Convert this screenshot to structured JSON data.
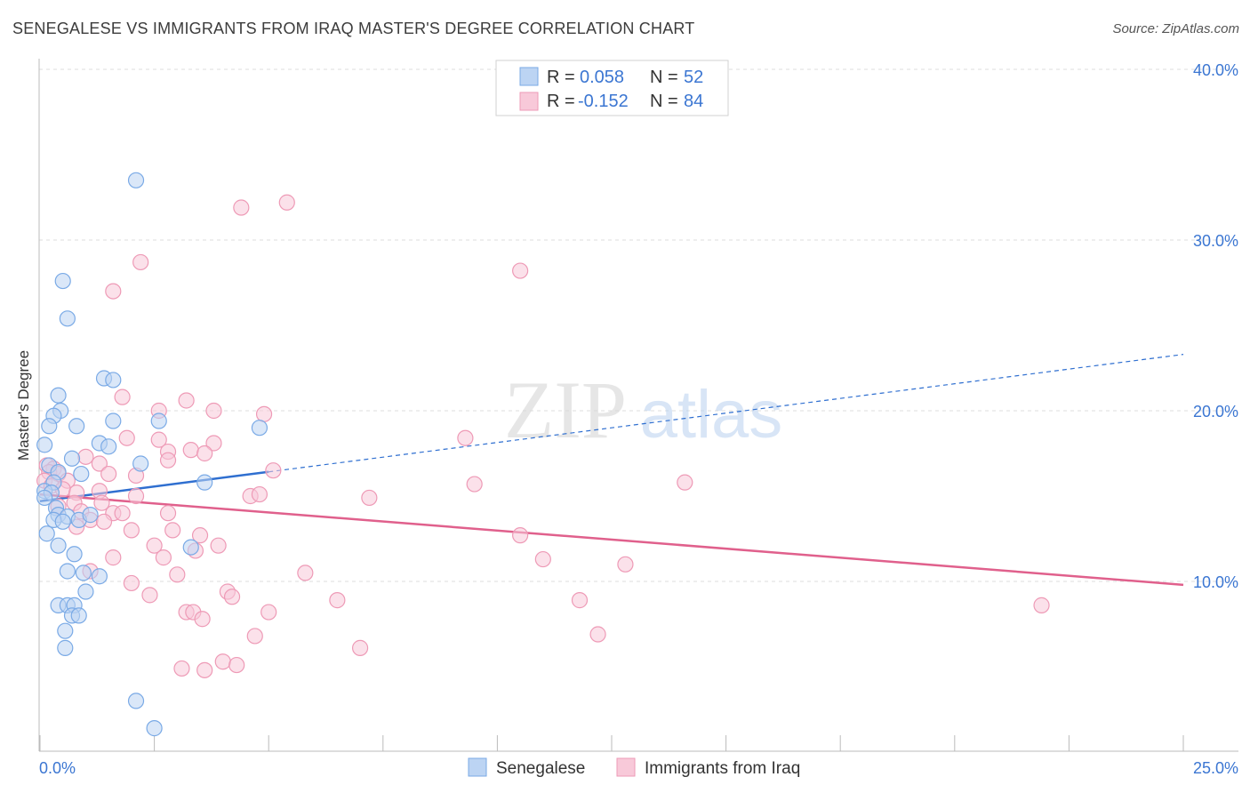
{
  "title": "SENEGALESE VS IMMIGRANTS FROM IRAQ MASTER'S DEGREE CORRELATION CHART",
  "source": "Source: ZipAtlas.com",
  "watermark": {
    "zip": "ZIP",
    "atlas": "atlas"
  },
  "legend": {
    "rows": [
      {
        "r_label": "R =",
        "r_value": "0.058",
        "n_label": "N =",
        "n_value": "52"
      },
      {
        "r_label": "R =",
        "r_value": "-0.152",
        "n_label": "N =",
        "n_value": "84"
      }
    ]
  },
  "chart_data": {
    "type": "scatter",
    "title": "SENEGALESE VS IMMIGRANTS FROM IRAQ MASTER'S DEGREE CORRELATION CHART",
    "xlabel": "",
    "ylabel": "Master's Degree",
    "xlim": [
      0,
      25
    ],
    "ylim": [
      0,
      41
    ],
    "x_tick_labels": [
      {
        "value": 0,
        "label": "0.0%"
      },
      {
        "value": 25,
        "label": "25.0%"
      }
    ],
    "y_tick_labels": [
      {
        "value": 10,
        "label": "10.0%"
      },
      {
        "value": 20,
        "label": "20.0%"
      },
      {
        "value": 30,
        "label": "30.0%"
      },
      {
        "value": 40,
        "label": "40.0%"
      }
    ],
    "grid": true,
    "legend_position": "top-center",
    "series": [
      {
        "name": "Senegalese",
        "color": "#7aaae6",
        "fill": "#bcd4f3",
        "line_color": "#2f6fd0",
        "regression": {
          "x_start": 0,
          "y_start": 14.7,
          "x_end": 25,
          "y_end": 23.3,
          "solid_until_x": 5
        },
        "points": [
          [
            2.1,
            33.5
          ],
          [
            0.5,
            27.6
          ],
          [
            0.6,
            25.4
          ],
          [
            1.4,
            21.9
          ],
          [
            1.6,
            21.8
          ],
          [
            0.4,
            20.9
          ],
          [
            0.45,
            20.0
          ],
          [
            0.3,
            19.7
          ],
          [
            0.2,
            19.1
          ],
          [
            0.8,
            19.1
          ],
          [
            1.6,
            19.4
          ],
          [
            2.6,
            19.4
          ],
          [
            4.8,
            19.0
          ],
          [
            0.1,
            18.0
          ],
          [
            1.3,
            18.1
          ],
          [
            1.5,
            17.9
          ],
          [
            0.7,
            17.2
          ],
          [
            2.2,
            16.9
          ],
          [
            0.2,
            16.8
          ],
          [
            0.4,
            16.4
          ],
          [
            0.9,
            16.3
          ],
          [
            0.3,
            15.8
          ],
          [
            3.6,
            15.8
          ],
          [
            0.1,
            15.3
          ],
          [
            0.25,
            15.2
          ],
          [
            0.1,
            14.9
          ],
          [
            0.35,
            14.3
          ],
          [
            0.4,
            13.9
          ],
          [
            0.6,
            13.8
          ],
          [
            0.3,
            13.6
          ],
          [
            0.5,
            13.5
          ],
          [
            0.85,
            13.6
          ],
          [
            1.1,
            13.9
          ],
          [
            0.15,
            12.8
          ],
          [
            0.4,
            12.1
          ],
          [
            3.3,
            12.0
          ],
          [
            0.75,
            11.6
          ],
          [
            0.6,
            10.6
          ],
          [
            0.95,
            10.5
          ],
          [
            1.3,
            10.3
          ],
          [
            1.0,
            9.4
          ],
          [
            0.4,
            8.6
          ],
          [
            0.6,
            8.6
          ],
          [
            0.75,
            8.6
          ],
          [
            0.7,
            8.0
          ],
          [
            0.85,
            8.0
          ],
          [
            0.55,
            7.1
          ],
          [
            0.55,
            6.1
          ],
          [
            2.1,
            3.0
          ],
          [
            2.5,
            1.4
          ]
        ]
      },
      {
        "name": "Immigrants from Iraq",
        "color": "#ee9ab6",
        "fill": "#f8c9d9",
        "line_color": "#e0608c",
        "regression": {
          "x_start": 0,
          "y_start": 15.1,
          "x_end": 25,
          "y_end": 9.8,
          "solid_until_x": 25
        },
        "points": [
          [
            5.4,
            32.2
          ],
          [
            4.4,
            31.9
          ],
          [
            10.5,
            28.2
          ],
          [
            2.2,
            28.7
          ],
          [
            1.6,
            27.0
          ],
          [
            1.8,
            20.8
          ],
          [
            3.2,
            20.6
          ],
          [
            2.6,
            20.0
          ],
          [
            3.8,
            20.0
          ],
          [
            4.9,
            19.8
          ],
          [
            9.3,
            18.4
          ],
          [
            1.9,
            18.4
          ],
          [
            2.6,
            18.3
          ],
          [
            3.8,
            18.1
          ],
          [
            3.3,
            17.7
          ],
          [
            2.8,
            17.6
          ],
          [
            3.6,
            17.5
          ],
          [
            1.0,
            17.3
          ],
          [
            1.3,
            16.9
          ],
          [
            2.8,
            17.1
          ],
          [
            0.15,
            16.8
          ],
          [
            0.3,
            16.6
          ],
          [
            0.2,
            16.4
          ],
          [
            0.4,
            16.3
          ],
          [
            1.5,
            16.3
          ],
          [
            2.1,
            16.2
          ],
          [
            5.1,
            16.5
          ],
          [
            0.1,
            15.9
          ],
          [
            0.6,
            15.9
          ],
          [
            0.25,
            15.6
          ],
          [
            0.5,
            15.4
          ],
          [
            0.8,
            15.2
          ],
          [
            1.3,
            15.3
          ],
          [
            2.1,
            15.0
          ],
          [
            4.6,
            15.0
          ],
          [
            4.8,
            15.1
          ],
          [
            7.2,
            14.9
          ],
          [
            9.5,
            15.7
          ],
          [
            14.1,
            15.8
          ],
          [
            0.4,
            14.4
          ],
          [
            0.75,
            14.6
          ],
          [
            1.35,
            14.6
          ],
          [
            0.9,
            14.1
          ],
          [
            1.6,
            14.0
          ],
          [
            1.8,
            14.0
          ],
          [
            2.8,
            14.0
          ],
          [
            1.1,
            13.6
          ],
          [
            1.4,
            13.5
          ],
          [
            0.8,
            13.2
          ],
          [
            2.0,
            13.0
          ],
          [
            2.9,
            13.0
          ],
          [
            3.5,
            12.7
          ],
          [
            10.5,
            12.7
          ],
          [
            2.5,
            12.1
          ],
          [
            3.9,
            12.1
          ],
          [
            3.4,
            11.8
          ],
          [
            1.6,
            11.4
          ],
          [
            2.7,
            11.4
          ],
          [
            11.0,
            11.3
          ],
          [
            1.1,
            10.6
          ],
          [
            3.0,
            10.4
          ],
          [
            5.8,
            10.5
          ],
          [
            12.8,
            11.0
          ],
          [
            2.0,
            9.9
          ],
          [
            4.1,
            9.4
          ],
          [
            4.2,
            9.1
          ],
          [
            2.4,
            9.2
          ],
          [
            6.5,
            8.9
          ],
          [
            11.8,
            8.9
          ],
          [
            21.9,
            8.6
          ],
          [
            3.2,
            8.2
          ],
          [
            3.35,
            8.2
          ],
          [
            5.0,
            8.2
          ],
          [
            3.55,
            7.8
          ],
          [
            12.2,
            6.9
          ],
          [
            4.7,
            6.8
          ],
          [
            7.0,
            6.1
          ],
          [
            4.0,
            5.3
          ],
          [
            4.3,
            5.1
          ],
          [
            3.1,
            4.9
          ],
          [
            3.6,
            4.8
          ]
        ]
      }
    ]
  }
}
